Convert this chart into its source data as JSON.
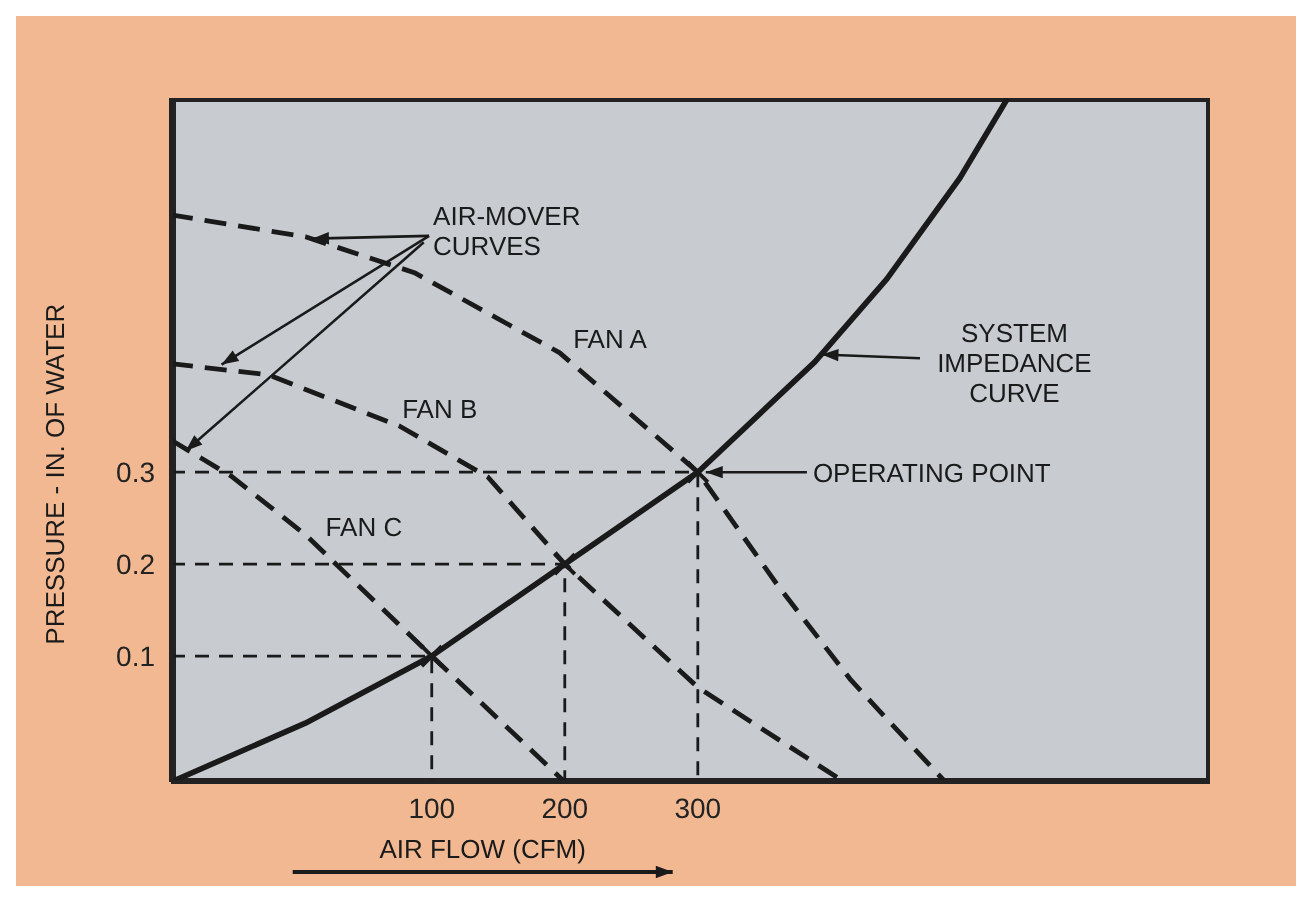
{
  "chart_data": {
    "type": "line",
    "xlabel": "AIR FLOW (CFM)",
    "ylabel": "PRESSURE - IN. OF WATER",
    "xlim": [
      -96,
      685
    ],
    "ylim": [
      -0.037,
      0.707
    ],
    "xticks": [
      100,
      200,
      300
    ],
    "yticks": [
      0.1,
      0.2,
      0.3
    ],
    "grid": false,
    "legend": false,
    "marker": "none",
    "series": [
      {
        "color": "#1a1a1a",
        "line_style": "solid",
        "x": [
          -96,
          5,
          100,
          200,
          300,
          388,
          442,
          497,
          533
        ],
        "values": [
          -0.037,
          0.027,
          0.1,
          0.2,
          0.3,
          0.42,
          0.51,
          0.62,
          0.707
        ]
      },
      {
        "color": "#1a1a1a",
        "line_style": "dashed",
        "x": [
          -96,
          5,
          87,
          196,
          300,
          360,
          415,
          486
        ],
        "values": [
          0.58,
          0.556,
          0.517,
          0.43,
          0.3,
          0.177,
          0.074,
          -0.037
        ]
      },
      {
        "color": "#1a1a1a",
        "line_style": "dashed",
        "x": [
          -96,
          -23,
          76,
          142,
          200,
          300,
          410
        ],
        "values": [
          0.418,
          0.406,
          0.35,
          0.295,
          0.2,
          0.066,
          -0.037
        ]
      },
      {
        "color": "#1a1a1a",
        "line_style": "dashed",
        "x": [
          -96,
          -50,
          5,
          100,
          200
        ],
        "values": [
          0.335,
          0.295,
          0.232,
          0.1,
          -0.037
        ]
      },
      {
        "color": "#1a1a1a",
        "line_style": "dotted",
        "x": [
          -96,
          100,
          100
        ],
        "values": [
          0.1,
          0.1,
          -0.037
        ]
      },
      {
        "color": "#1a1a1a",
        "line_style": "dotted",
        "x": [
          -96,
          200,
          200
        ],
        "values": [
          0.2,
          0.2,
          -0.037
        ]
      },
      {
        "color": "#1a1a1a",
        "line_style": "dotted",
        "x": [
          -96,
          300,
          300
        ],
        "values": [
          0.3,
          0.3,
          -0.037
        ]
      },
      {
        "type": "scatter",
        "color": "#1a1a1a",
        "marker": "cross",
        "x": [
          100,
          200,
          300
        ],
        "values": [
          0.1,
          0.2,
          0.3
        ]
      }
    ],
    "annotations": [
      {
        "text": "AIR-MOVER\nCURVES",
        "x": -58,
        "y": 0.417
      },
      "FAN A",
      "FAN B",
      "FAN C",
      {
        "text": "SYSTEM\nIMPEDANCE\nCURVE",
        "x": 393,
        "y": 0.428
      },
      "OPERATING POINT"
    ]
  }
}
